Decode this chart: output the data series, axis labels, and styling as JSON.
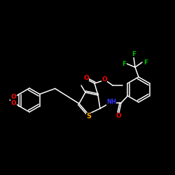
{
  "background_color": "#000000",
  "bond_color": "#ffffff",
  "atom_colors": {
    "O": "#ff0000",
    "S": "#ffa500",
    "N": "#3333ff",
    "F": "#00bb00",
    "H": "#ffffff",
    "C": "#ffffff"
  },
  "figsize": [
    2.5,
    2.5
  ],
  "dpi": 100,
  "line_width": 1.1
}
